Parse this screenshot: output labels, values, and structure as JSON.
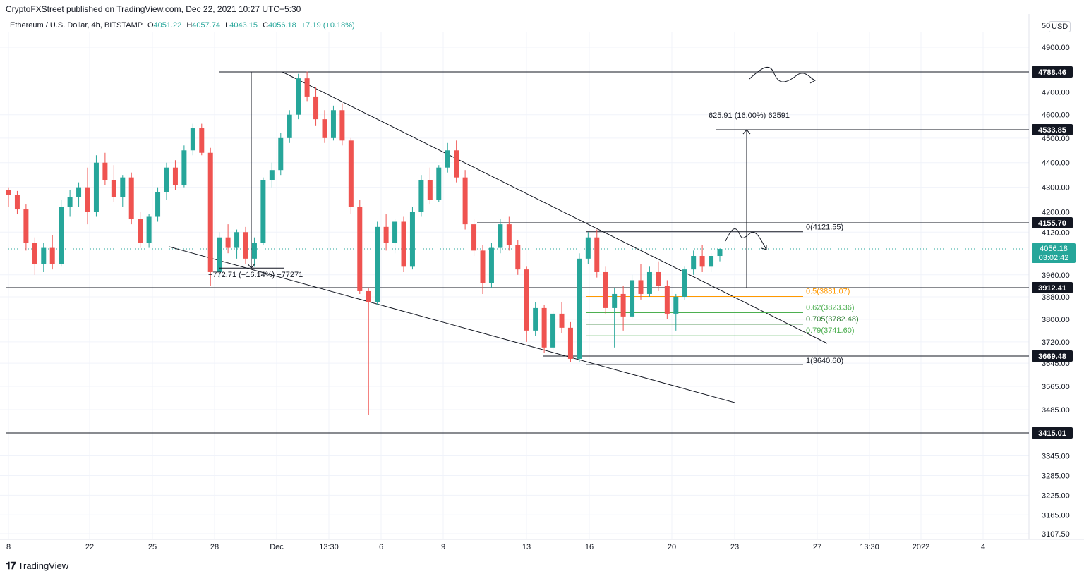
{
  "header": {
    "published": "CryptoFXStreet published on TradingView.com, Dec 22, 2021 10:27 UTC+5:30"
  },
  "legend": {
    "symbol": "Ethereum / U.S. Dollar, 4h, BITSTAMP",
    "open_label": "O",
    "open": "4051.22",
    "high_label": "H",
    "high": "4057.74",
    "low_label": "L",
    "low": "4043.15",
    "close_label": "C",
    "close": "4056.18",
    "change": "+7.19 (+0.18%)"
  },
  "currency": "USD",
  "footer": {
    "brand": "TradingView",
    "logo": "tradingview-logo-icon"
  },
  "colors": {
    "up": "#26a69a",
    "down": "#ef5350",
    "fib_orange": "#ff9800",
    "fib_green": "#4caf50",
    "line": "#131722"
  },
  "chart_data": {
    "type": "candlestick",
    "x_ticks": [
      "8",
      "22",
      "25",
      "28",
      "Dec",
      "13:30",
      "6",
      "9",
      "13",
      "16",
      "20",
      "23",
      "27",
      "13:30",
      "2022",
      "4"
    ],
    "y_ticks": [
      "4900.00",
      "4700.00",
      "4600.00",
      "4500.00",
      "4400.00",
      "4300.00",
      "4200.00",
      "4120.00",
      "3960.00",
      "3880.00",
      "3800.00",
      "3720.00",
      "3645.00",
      "3565.00",
      "3485.00",
      "3345.00",
      "3285.00",
      "3225.00",
      "3165.00",
      "3107.50"
    ],
    "y_top_tick": "50",
    "price_labels": [
      {
        "text": "4788.46",
        "value": 4788.46
      },
      {
        "text": "4533.85",
        "value": 4533.85
      },
      {
        "text": "4155.70",
        "value": 4155.7
      },
      {
        "text": "3912.41",
        "value": 3912.41
      },
      {
        "text": "3669.48",
        "value": 3669.48
      },
      {
        "text": "3415.01",
        "value": 3415.01
      }
    ],
    "current": {
      "price": "4056.18",
      "countdown": "03:02:42",
      "value": 4056.18
    },
    "fib_levels": [
      {
        "text": "0(4121.55)",
        "value": 4121.55,
        "color": "#131722"
      },
      {
        "text": "0.5(3881.07)",
        "value": 3881.07,
        "color": "#ff9800"
      },
      {
        "text": "0.62(3823.36)",
        "value": 3823.36,
        "color": "#4caf50"
      },
      {
        "text": "0.705(3782.48)",
        "value": 3782.48,
        "color": "#2e7d32"
      },
      {
        "text": "0.79(3741.60)",
        "value": 3741.6,
        "color": "#4caf50"
      },
      {
        "text": "1(3640.60)",
        "value": 3640.6,
        "color": "#131722"
      }
    ],
    "measure_down": "−772.71 (−16.14%) −77271",
    "measure_up": "625.91 (16.00%) 62591",
    "candles": [
      {
        "o": 4290,
        "h": 4300,
        "l": 4220,
        "c": 4270
      },
      {
        "o": 4270,
        "h": 4285,
        "l": 4190,
        "c": 4210
      },
      {
        "o": 4210,
        "h": 4230,
        "l": 4050,
        "c": 4080
      },
      {
        "o": 4080,
        "h": 4100,
        "l": 3960,
        "c": 4000
      },
      {
        "o": 4000,
        "h": 4080,
        "l": 3970,
        "c": 4060
      },
      {
        "o": 4060,
        "h": 4110,
        "l": 3980,
        "c": 4000
      },
      {
        "o": 4000,
        "h": 4250,
        "l": 3990,
        "c": 4220
      },
      {
        "o": 4220,
        "h": 4290,
        "l": 4180,
        "c": 4260
      },
      {
        "o": 4260,
        "h": 4320,
        "l": 4220,
        "c": 4300
      },
      {
        "o": 4300,
        "h": 4380,
        "l": 4150,
        "c": 4200
      },
      {
        "o": 4200,
        "h": 4430,
        "l": 4180,
        "c": 4400
      },
      {
        "o": 4400,
        "h": 4440,
        "l": 4310,
        "c": 4330
      },
      {
        "o": 4330,
        "h": 4390,
        "l": 4240,
        "c": 4260
      },
      {
        "o": 4260,
        "h": 4350,
        "l": 4220,
        "c": 4340
      },
      {
        "o": 4340,
        "h": 4360,
        "l": 4150,
        "c": 4170
      },
      {
        "o": 4170,
        "h": 4200,
        "l": 4060,
        "c": 4080
      },
      {
        "o": 4080,
        "h": 4190,
        "l": 4060,
        "c": 4180
      },
      {
        "o": 4180,
        "h": 4300,
        "l": 4160,
        "c": 4280
      },
      {
        "o": 4280,
        "h": 4400,
        "l": 4250,
        "c": 4380
      },
      {
        "o": 4380,
        "h": 4410,
        "l": 4290,
        "c": 4310
      },
      {
        "o": 4310,
        "h": 4470,
        "l": 4300,
        "c": 4450
      },
      {
        "o": 4450,
        "h": 4560,
        "l": 4430,
        "c": 4540
      },
      {
        "o": 4540,
        "h": 4560,
        "l": 4430,
        "c": 4440
      },
      {
        "o": 4440,
        "h": 4460,
        "l": 3920,
        "c": 3970
      },
      {
        "o": 3970,
        "h": 4120,
        "l": 3950,
        "c": 4100
      },
      {
        "o": 4100,
        "h": 4150,
        "l": 4040,
        "c": 4060
      },
      {
        "o": 4060,
        "h": 4130,
        "l": 4020,
        "c": 4120
      },
      {
        "o": 4120,
        "h": 4140,
        "l": 4000,
        "c": 4020
      },
      {
        "o": 4020,
        "h": 4100,
        "l": 3990,
        "c": 4080
      },
      {
        "o": 4080,
        "h": 4340,
        "l": 4070,
        "c": 4330
      },
      {
        "o": 4330,
        "h": 4400,
        "l": 4300,
        "c": 4370
      },
      {
        "o": 4370,
        "h": 4520,
        "l": 4350,
        "c": 4500
      },
      {
        "o": 4500,
        "h": 4620,
        "l": 4480,
        "c": 4600
      },
      {
        "o": 4600,
        "h": 4780,
        "l": 4580,
        "c": 4760
      },
      {
        "o": 4760,
        "h": 4790,
        "l": 4660,
        "c": 4680
      },
      {
        "o": 4680,
        "h": 4720,
        "l": 4550,
        "c": 4580
      },
      {
        "o": 4580,
        "h": 4620,
        "l": 4480,
        "c": 4500
      },
      {
        "o": 4500,
        "h": 4640,
        "l": 4490,
        "c": 4620
      },
      {
        "o": 4620,
        "h": 4650,
        "l": 4470,
        "c": 4490
      },
      {
        "o": 4490,
        "h": 4500,
        "l": 4190,
        "c": 4220
      },
      {
        "o": 4220,
        "h": 4250,
        "l": 3890,
        "c": 3900
      },
      {
        "o": 3900,
        "h": 3910,
        "l": 3470,
        "c": 3860
      },
      {
        "o": 3860,
        "h": 4160,
        "l": 3850,
        "c": 4140
      },
      {
        "o": 4140,
        "h": 4190,
        "l": 4050,
        "c": 4080
      },
      {
        "o": 4080,
        "h": 4170,
        "l": 4040,
        "c": 4160
      },
      {
        "o": 4160,
        "h": 4180,
        "l": 3970,
        "c": 3990
      },
      {
        "o": 3990,
        "h": 4220,
        "l": 3980,
        "c": 4200
      },
      {
        "o": 4200,
        "h": 4350,
        "l": 4180,
        "c": 4330
      },
      {
        "o": 4330,
        "h": 4380,
        "l": 4230,
        "c": 4250
      },
      {
        "o": 4250,
        "h": 4390,
        "l": 4240,
        "c": 4380
      },
      {
        "o": 4380,
        "h": 4480,
        "l": 4360,
        "c": 4450
      },
      {
        "o": 4450,
        "h": 4490,
        "l": 4320,
        "c": 4340
      },
      {
        "o": 4340,
        "h": 4370,
        "l": 4130,
        "c": 4150
      },
      {
        "o": 4150,
        "h": 4170,
        "l": 4030,
        "c": 4050
      },
      {
        "o": 4050,
        "h": 4070,
        "l": 3890,
        "c": 3930
      },
      {
        "o": 3930,
        "h": 4080,
        "l": 3910,
        "c": 4060
      },
      {
        "o": 4060,
        "h": 4170,
        "l": 4040,
        "c": 4150
      },
      {
        "o": 4150,
        "h": 4180,
        "l": 4050,
        "c": 4070
      },
      {
        "o": 4070,
        "h": 4090,
        "l": 3960,
        "c": 3980
      },
      {
        "o": 3980,
        "h": 3990,
        "l": 3720,
        "c": 3760
      },
      {
        "o": 3760,
        "h": 3860,
        "l": 3740,
        "c": 3840
      },
      {
        "o": 3840,
        "h": 3850,
        "l": 3680,
        "c": 3700
      },
      {
        "o": 3700,
        "h": 3830,
        "l": 3690,
        "c": 3820
      },
      {
        "o": 3820,
        "h": 3860,
        "l": 3750,
        "c": 3770
      },
      {
        "o": 3770,
        "h": 3790,
        "l": 3650,
        "c": 3660
      },
      {
        "o": 3660,
        "h": 4040,
        "l": 3650,
        "c": 4020
      },
      {
        "o": 4020,
        "h": 4120,
        "l": 4000,
        "c": 4100
      },
      {
        "o": 4100,
        "h": 4130,
        "l": 3950,
        "c": 3970
      },
      {
        "o": 3970,
        "h": 3990,
        "l": 3820,
        "c": 3840
      },
      {
        "o": 3840,
        "h": 3910,
        "l": 3700,
        "c": 3890
      },
      {
        "o": 3890,
        "h": 3920,
        "l": 3760,
        "c": 3810
      },
      {
        "o": 3810,
        "h": 3960,
        "l": 3800,
        "c": 3940
      },
      {
        "o": 3940,
        "h": 4000,
        "l": 3870,
        "c": 3890
      },
      {
        "o": 3890,
        "h": 3990,
        "l": 3880,
        "c": 3970
      },
      {
        "o": 3970,
        "h": 4010,
        "l": 3900,
        "c": 3920
      },
      {
        "o": 3920,
        "h": 3940,
        "l": 3800,
        "c": 3820
      },
      {
        "o": 3820,
        "h": 3890,
        "l": 3760,
        "c": 3880
      },
      {
        "o": 3880,
        "h": 3990,
        "l": 3870,
        "c": 3980
      },
      {
        "o": 3980,
        "h": 4050,
        "l": 3960,
        "c": 4030
      },
      {
        "o": 4030,
        "h": 4070,
        "l": 3970,
        "c": 3990
      },
      {
        "o": 3990,
        "h": 4040,
        "l": 3970,
        "c": 4030
      },
      {
        "o": 4030,
        "h": 4058,
        "l": 4010,
        "c": 4056
      }
    ]
  }
}
